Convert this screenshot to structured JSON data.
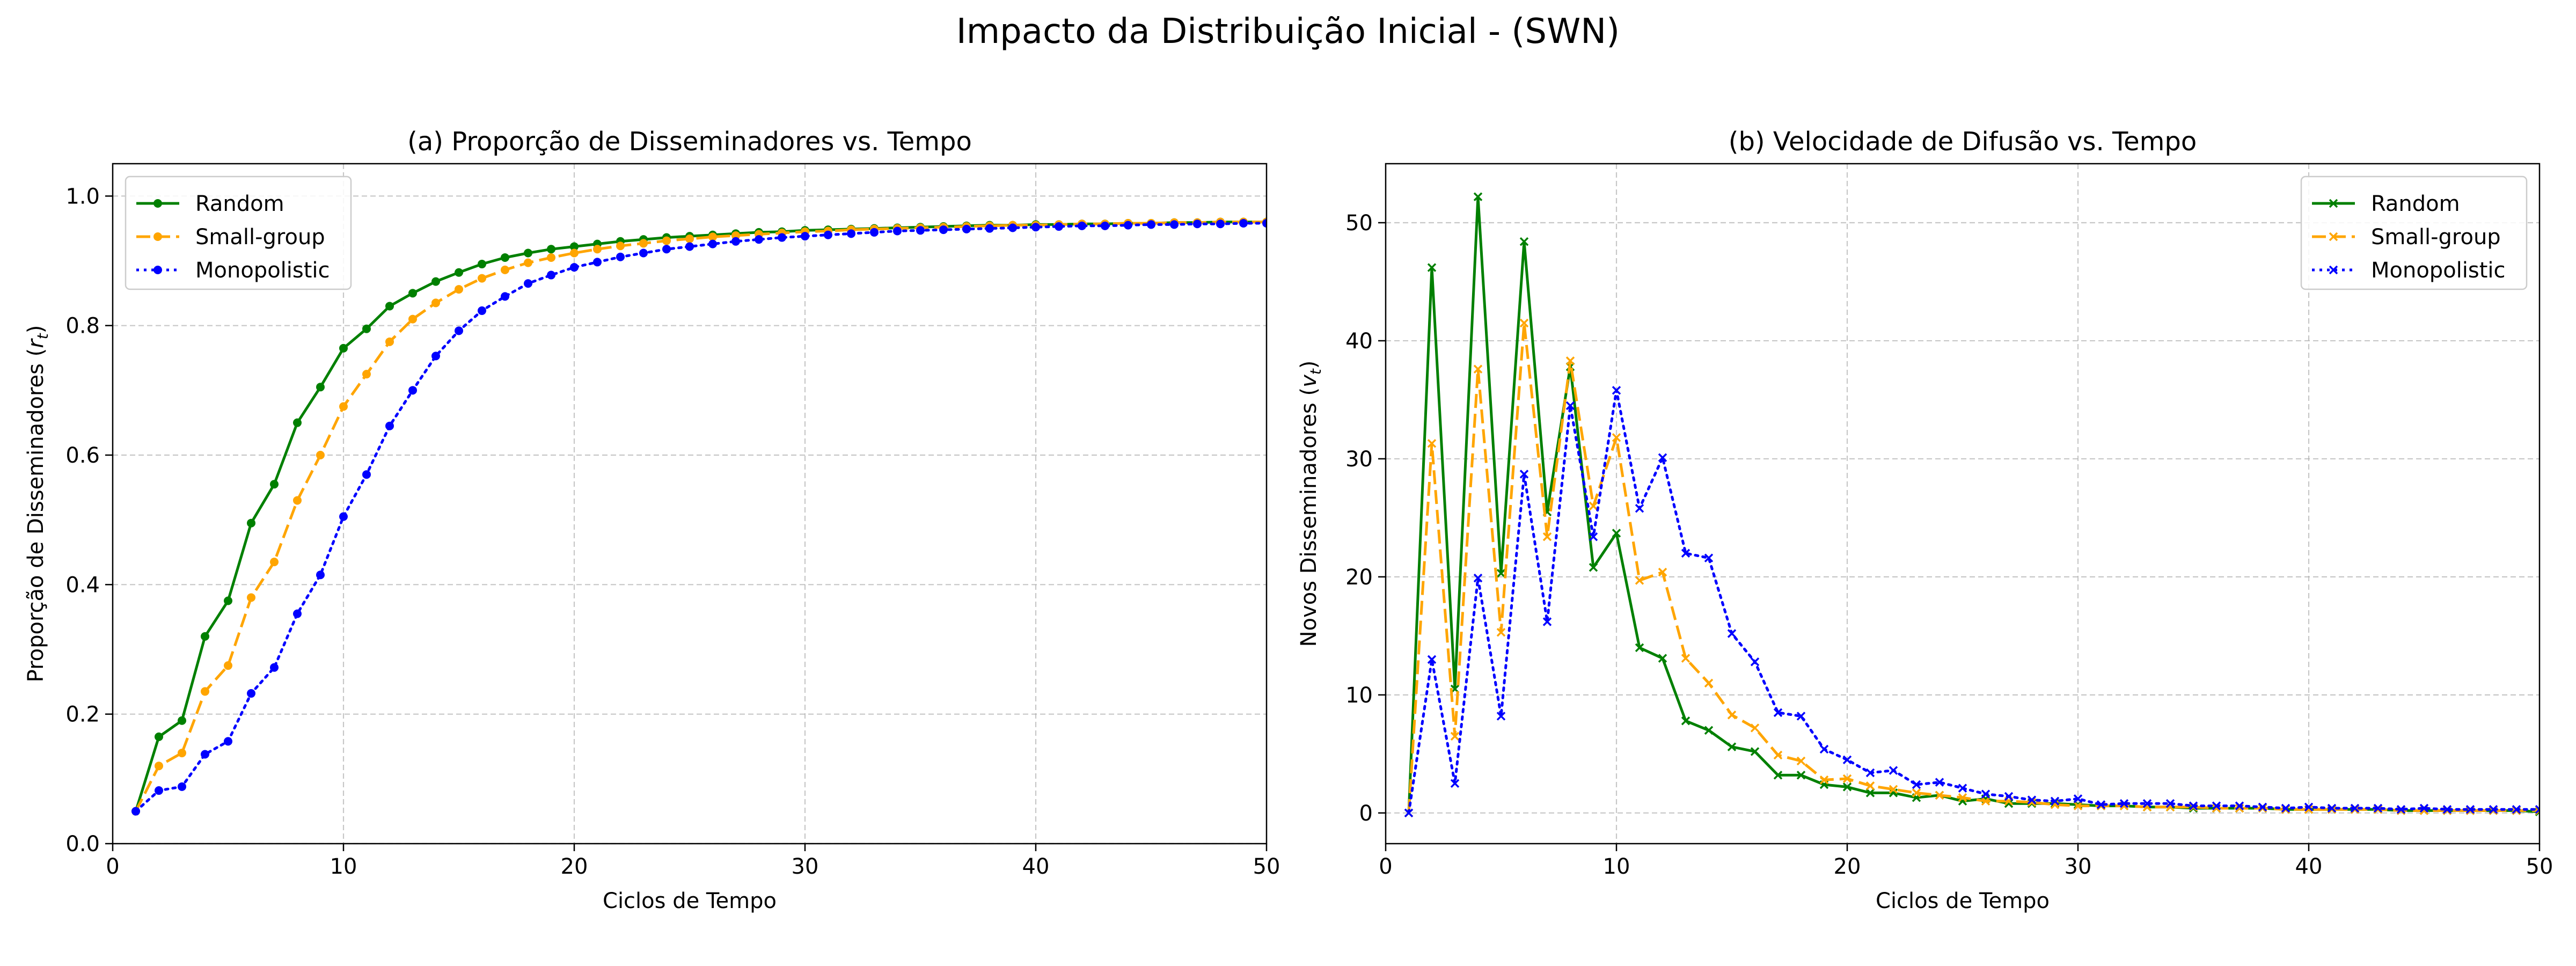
{
  "suptitle": "Impacto da Distribuição Inicial - (SWN)",
  "chart_data": [
    {
      "type": "line",
      "title": "(a) Proporção de Disseminadores vs. Tempo",
      "xlabel": "Ciclos de Tempo",
      "ylabel": "Proporção de Disseminadores (r_t)",
      "xlim": [
        0,
        50
      ],
      "ylim": [
        0,
        1.05
      ],
      "xticks": [
        0,
        10,
        20,
        30,
        40,
        50
      ],
      "yticks": [
        0.0,
        0.2,
        0.4,
        0.6,
        0.8,
        1.0
      ],
      "tick_labels_y": [
        "0.0",
        "0.2",
        "0.4",
        "0.6",
        "0.8",
        "1.0"
      ],
      "grid": true,
      "legend_position": "upper-left",
      "x": [
        1,
        2,
        3,
        4,
        5,
        6,
        7,
        8,
        9,
        10,
        11,
        12,
        13,
        14,
        15,
        16,
        17,
        18,
        19,
        20,
        21,
        22,
        23,
        24,
        25,
        26,
        27,
        28,
        29,
        30,
        31,
        32,
        33,
        34,
        35,
        36,
        37,
        38,
        39,
        40,
        41,
        42,
        43,
        44,
        45,
        46,
        47,
        48,
        49,
        50
      ],
      "series": [
        {
          "name": "Random",
          "color": "#008000",
          "linestyle": "solid",
          "marker": "dot",
          "values": [
            0.05,
            0.165,
            0.19,
            0.32,
            0.375,
            0.495,
            0.555,
            0.65,
            0.705,
            0.765,
            0.795,
            0.83,
            0.85,
            0.868,
            0.882,
            0.895,
            0.905,
            0.912,
            0.918,
            0.922,
            0.926,
            0.93,
            0.933,
            0.936,
            0.938,
            0.94,
            0.942,
            0.944,
            0.945,
            0.947,
            0.948,
            0.949,
            0.95,
            0.951,
            0.952,
            0.953,
            0.954,
            0.955,
            0.955,
            0.956,
            0.956,
            0.957,
            0.957,
            0.958,
            0.958,
            0.959,
            0.959,
            0.96,
            0.96,
            0.96
          ]
        },
        {
          "name": "Small-group",
          "color": "#FFA500",
          "linestyle": "dashed",
          "marker": "dot",
          "values": [
            0.05,
            0.12,
            0.14,
            0.235,
            0.275,
            0.38,
            0.435,
            0.53,
            0.6,
            0.675,
            0.725,
            0.775,
            0.81,
            0.835,
            0.856,
            0.873,
            0.886,
            0.897,
            0.905,
            0.912,
            0.918,
            0.923,
            0.927,
            0.931,
            0.934,
            0.937,
            0.939,
            0.941,
            0.943,
            0.945,
            0.946,
            0.948,
            0.949,
            0.95,
            0.951,
            0.952,
            0.953,
            0.954,
            0.955,
            0.955,
            0.956,
            0.957,
            0.957,
            0.958,
            0.958,
            0.959,
            0.959,
            0.96,
            0.96,
            0.96
          ]
        },
        {
          "name": "Monopolistic",
          "color": "#0000FF",
          "linestyle": "dotted",
          "marker": "dot",
          "values": [
            0.05,
            0.082,
            0.088,
            0.138,
            0.158,
            0.232,
            0.272,
            0.355,
            0.415,
            0.505,
            0.57,
            0.645,
            0.7,
            0.753,
            0.792,
            0.823,
            0.845,
            0.865,
            0.878,
            0.89,
            0.898,
            0.906,
            0.912,
            0.918,
            0.922,
            0.926,
            0.93,
            0.933,
            0.936,
            0.938,
            0.94,
            0.942,
            0.944,
            0.946,
            0.947,
            0.948,
            0.949,
            0.95,
            0.951,
            0.952,
            0.953,
            0.954,
            0.954,
            0.955,
            0.956,
            0.956,
            0.957,
            0.957,
            0.958,
            0.958
          ]
        }
      ]
    },
    {
      "type": "line",
      "title": "(b) Velocidade de Difusão vs. Tempo",
      "xlabel": "Ciclos de Tempo",
      "ylabel": "Novos Disseminadores (v_t)",
      "xlim": [
        0,
        50
      ],
      "ylim": [
        -2.6,
        55
      ],
      "xticks": [
        0,
        10,
        20,
        30,
        40,
        50
      ],
      "yticks": [
        0,
        10,
        20,
        30,
        40,
        50
      ],
      "tick_labels_y": [
        "0",
        "10",
        "20",
        "30",
        "40",
        "50"
      ],
      "grid": true,
      "legend_position": "upper-right",
      "x": [
        1,
        2,
        3,
        4,
        5,
        6,
        7,
        8,
        9,
        10,
        11,
        12,
        13,
        14,
        15,
        16,
        17,
        18,
        19,
        20,
        21,
        22,
        23,
        24,
        25,
        26,
        27,
        28,
        29,
        30,
        31,
        32,
        33,
        34,
        35,
        36,
        37,
        38,
        39,
        40,
        41,
        42,
        43,
        44,
        45,
        46,
        47,
        48,
        49,
        50
      ],
      "series": [
        {
          "name": "Random",
          "color": "#008000",
          "linestyle": "solid",
          "marker": "x",
          "values": [
            0,
            46.2,
            10.5,
            52.2,
            20.3,
            48.4,
            25.5,
            37.8,
            20.8,
            23.7,
            14,
            13.1,
            7.8,
            7,
            5.6,
            5.2,
            3.2,
            3.2,
            2.4,
            2.2,
            1.7,
            1.7,
            1.3,
            1.5,
            1.0,
            1.2,
            0.8,
            0.8,
            0.8,
            0.7,
            0.6,
            0.6,
            0.5,
            0.5,
            0.4,
            0.4,
            0.4,
            0.4,
            0.3,
            0.3,
            0.3,
            0.3,
            0.3,
            0.2,
            0.2,
            0.2,
            0.2,
            0.2,
            0.2,
            0.1
          ]
        },
        {
          "name": "Small-group",
          "color": "#FFA500",
          "linestyle": "dashed",
          "marker": "x",
          "values": [
            0,
            31.3,
            6.5,
            37.6,
            15.3,
            41.5,
            23.4,
            38.3,
            26,
            31.8,
            19.7,
            20.4,
            13.1,
            11,
            8.3,
            7.2,
            4.9,
            4.4,
            2.8,
            2.9,
            2.3,
            2.0,
            1.7,
            1.5,
            1.3,
            1.0,
            1.0,
            0.9,
            0.7,
            0.6,
            0.6,
            0.6,
            0.5,
            0.5,
            0.5,
            0.4,
            0.4,
            0.4,
            0.3,
            0.3,
            0.3,
            0.3,
            0.3,
            0.2,
            0.2,
            0.2,
            0.2,
            0.2,
            0.2,
            0.2
          ]
        },
        {
          "name": "Monopolistic",
          "color": "#0000FF",
          "linestyle": "dotted",
          "marker": "x",
          "values": [
            0,
            13,
            2.5,
            19.9,
            8.2,
            28.7,
            16.2,
            34.5,
            23.4,
            35.8,
            25.8,
            30.1,
            22,
            21.6,
            15.2,
            12.8,
            8.5,
            8.2,
            5.4,
            4.5,
            3.4,
            3.6,
            2.4,
            2.6,
            2.1,
            1.6,
            1.4,
            1.1,
            1.0,
            1.2,
            0.7,
            0.8,
            0.8,
            0.8,
            0.6,
            0.6,
            0.6,
            0.5,
            0.4,
            0.5,
            0.4,
            0.4,
            0.4,
            0.3,
            0.4,
            0.3,
            0.3,
            0.3,
            0.3,
            0.3
          ]
        }
      ]
    }
  ]
}
